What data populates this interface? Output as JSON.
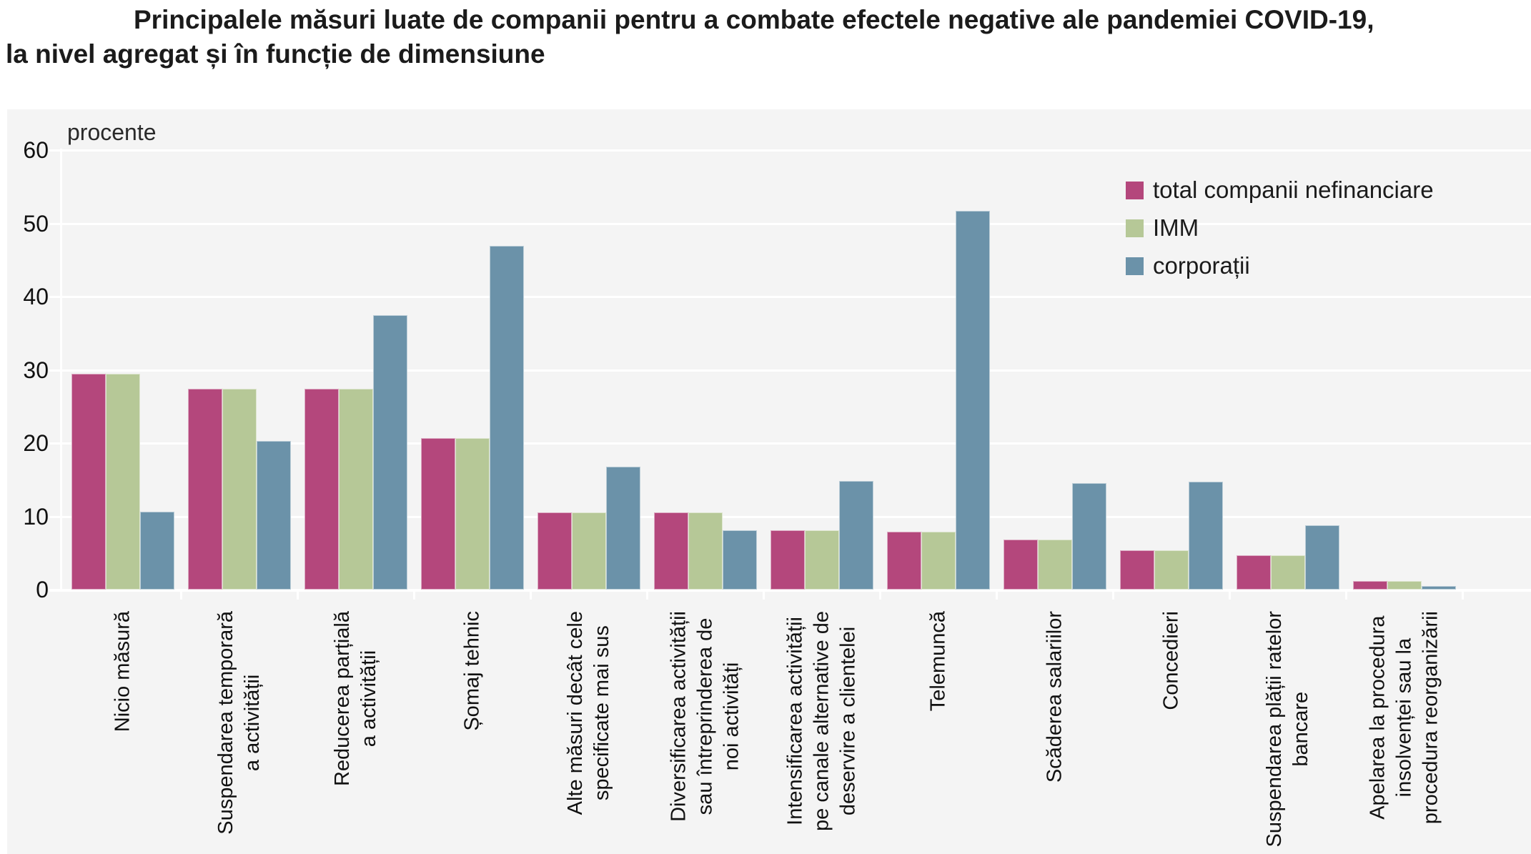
{
  "title": {
    "line1": "Principalele măsuri luate de companii pentru a combate efectele negative ale pandemiei COVID-19,",
    "line2": "la nivel agregat și în funcție de dimensiune"
  },
  "chart_data": {
    "type": "bar",
    "unit_label": "procente",
    "ylim": [
      0,
      60
    ],
    "yticks": [
      0,
      10,
      20,
      30,
      40,
      50,
      60
    ],
    "grid": "horizontal white gridlines on light gray plot background",
    "legend_position": "top-right",
    "categories": [
      [
        "Nicio măsură"
      ],
      [
        "Suspendarea temporară",
        "a activității"
      ],
      [
        "Reducerea parțială",
        "a activității"
      ],
      [
        "Șomaj tehnic"
      ],
      [
        "Alte măsuri decât cele",
        "specificate mai sus"
      ],
      [
        "Diversificarea activității",
        "sau întreprinderea de",
        "noi activități"
      ],
      [
        "Intensificarea activității",
        "pe canale alternative de",
        "deservire a clientelei"
      ],
      [
        "Telemuncă"
      ],
      [
        "Scăderea salariilor"
      ],
      [
        "Concedieri"
      ],
      [
        "Suspendarea plății ratelor",
        "bancare"
      ],
      [
        "Apelarea la procedura",
        "insolvenței sau la",
        "procedura reorganizării"
      ]
    ],
    "series": [
      {
        "name": "total companii nefinanciare",
        "color": "#b4477c",
        "values": [
          29.5,
          27.4,
          27.4,
          20.7,
          10.5,
          10.5,
          8.1,
          7.9,
          6.8,
          5.4,
          4.7,
          1.2
        ]
      },
      {
        "name": "IMM",
        "color": "#b6c897",
        "values": [
          29.5,
          27.4,
          27.4,
          20.7,
          10.5,
          10.5,
          8.1,
          7.9,
          6.8,
          5.4,
          4.7,
          1.2
        ]
      },
      {
        "name": "corporații",
        "color": "#6b92a9",
        "values": [
          10.6,
          20.3,
          37.5,
          46.9,
          16.8,
          8.1,
          14.8,
          51.7,
          14.5,
          14.7,
          8.8,
          0.5
        ]
      }
    ]
  },
  "colors": {
    "panel_bg": "#f4f4f4",
    "gridline": "#ffffff",
    "text": "#1b1b1b"
  }
}
